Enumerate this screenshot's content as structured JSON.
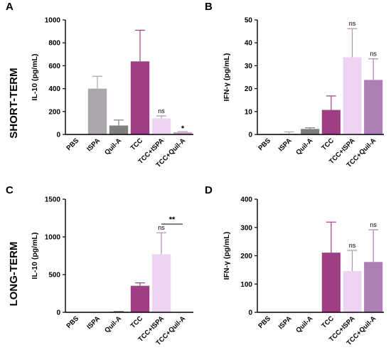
{
  "row_labels": [
    "SHORT-TERM",
    "LONG-TERM"
  ],
  "chart_data": [
    {
      "type": "bar",
      "panel": "A",
      "ylabel": "IL-10 (pg/mL)",
      "ylim": [
        0,
        1000
      ],
      "yticks": [
        0,
        200,
        400,
        600,
        800,
        1000
      ],
      "categories": [
        "PBS",
        "ISPA",
        "Quil-A",
        "TCC",
        "TCC+ISPA",
        "TCC+Quil-A"
      ],
      "values": [
        0,
        400,
        78,
        638,
        140,
        20
      ],
      "errors": [
        0,
        108,
        48,
        272,
        22,
        6
      ],
      "colors": [
        "#9e9e9e",
        "#aba6ac",
        "#7f7f7f",
        "#9e3f86",
        "#efd3f4",
        "#c7a4c8"
      ],
      "annotations": [
        {
          "category": "TCC+ISPA",
          "text": "ns"
        },
        {
          "category": "TCC+Quil-A",
          "text": "*"
        }
      ]
    },
    {
      "type": "bar",
      "panel": "B",
      "ylabel": "IFN-γ (pg/mL)",
      "ylim": [
        0,
        50
      ],
      "yticks": [
        0,
        10,
        20,
        30,
        40,
        50
      ],
      "categories": [
        "PBS",
        "ISPA",
        "Quil-A",
        "TCC",
        "TCC+ISPA",
        "TCC+Quil-A"
      ],
      "values": [
        0,
        0.3,
        2.4,
        10.7,
        33.7,
        23.8
      ],
      "errors": [
        0,
        0.8,
        0.5,
        6.1,
        12.5,
        9.2
      ],
      "colors": [
        "#9e9e9e",
        "#aba6ac",
        "#7f7f7f",
        "#9e3f86",
        "#efd3f4",
        "#ad7fb4"
      ],
      "annotations": [
        {
          "category": "TCC+ISPA",
          "text": "ns"
        },
        {
          "category": "TCC+Quil-A",
          "text": "ns"
        }
      ]
    },
    {
      "type": "bar",
      "panel": "C",
      "ylabel": "IL-10 (pg/mL)",
      "ylim": [
        0,
        1500
      ],
      "yticks": [
        0,
        500,
        1000,
        1500
      ],
      "categories": [
        "PBS",
        "ISPA",
        "Quil-A",
        "TCC",
        "TCC+ISPA",
        "TCC+Quil-A"
      ],
      "values": [
        0,
        0,
        8,
        352,
        770,
        0
      ],
      "errors": [
        0,
        0,
        4,
        38,
        285,
        0
      ],
      "colors": [
        "#9e9e9e",
        "#aba6ac",
        "#7f7f7f",
        "#9e3f86",
        "#efd3f4",
        "#ad7fb4"
      ],
      "annotations": [
        {
          "category": "TCC+ISPA",
          "text": "ns"
        }
      ],
      "brackets": [
        {
          "from": "TCC+ISPA",
          "to": "TCC+Quil-A",
          "text": "**",
          "y": 1170
        }
      ]
    },
    {
      "type": "bar",
      "panel": "D",
      "ylabel": "IFN-γ (pg/mL)",
      "ylim": [
        0,
        400
      ],
      "yticks": [
        0,
        100,
        200,
        300,
        400
      ],
      "categories": [
        "PBS",
        "ISPA",
        "Quil-A",
        "TCC",
        "TCC+ISPA",
        "TCC+Quil-A"
      ],
      "values": [
        0,
        0,
        0,
        211,
        146,
        178
      ],
      "errors": [
        0,
        0,
        0,
        108,
        73,
        114
      ],
      "colors": [
        "#9e9e9e",
        "#aba6ac",
        "#7f7f7f",
        "#9e3f86",
        "#efd3f4",
        "#ad7fb4"
      ],
      "annotations": [
        {
          "category": "TCC+ISPA",
          "text": "ns"
        },
        {
          "category": "TCC+Quil-A",
          "text": "ns"
        }
      ]
    }
  ]
}
